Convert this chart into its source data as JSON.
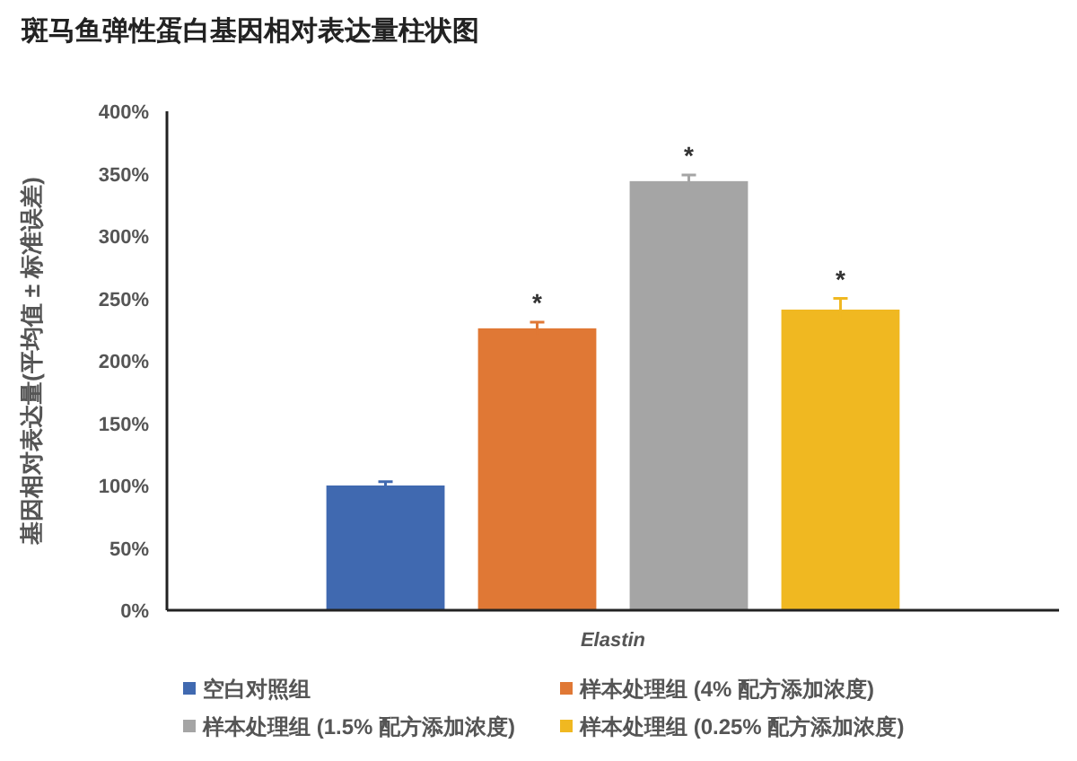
{
  "chart_data": {
    "type": "bar",
    "title": "斑马鱼弹性蛋白基因相对表达量柱状图",
    "ylabel": "基因相对表达量(平均值 ± 标准误差)",
    "categories": [
      "Elastin"
    ],
    "series": [
      {
        "name": "空白对照组",
        "color": "#4069b0",
        "values": [
          100
        ],
        "errors": [
          3
        ],
        "value_labels": [
          null
        ]
      },
      {
        "name": "样本处理组 (4% 配方添加浓度)",
        "color": "#e07835",
        "values": [
          226
        ],
        "errors": [
          5
        ],
        "value_labels": [
          "*"
        ]
      },
      {
        "name": "样本处理组 (1.5% 配方添加浓度)",
        "color": "#a5a5a5",
        "values": [
          344
        ],
        "errors": [
          5
        ],
        "value_labels": [
          "*"
        ]
      },
      {
        "name": "样本处理组 (0.25% 配方添加浓度)",
        "color": "#f0b821",
        "values": [
          241
        ],
        "errors": [
          9
        ],
        "value_labels": [
          "*"
        ]
      }
    ],
    "ylim": [
      0,
      400
    ],
    "yticks": [
      {
        "value": 0,
        "label": "0%"
      },
      {
        "value": 50,
        "label": "50%"
      },
      {
        "value": 100,
        "label": "100%"
      },
      {
        "value": 150,
        "label": "150%"
      },
      {
        "value": 200,
        "label": "200%"
      },
      {
        "value": 250,
        "label": "250%"
      },
      {
        "value": 300,
        "label": "300%"
      },
      {
        "value": 350,
        "label": "350%"
      },
      {
        "value": 400,
        "label": "400%"
      }
    ],
    "grid": false,
    "legend": "bottom"
  }
}
